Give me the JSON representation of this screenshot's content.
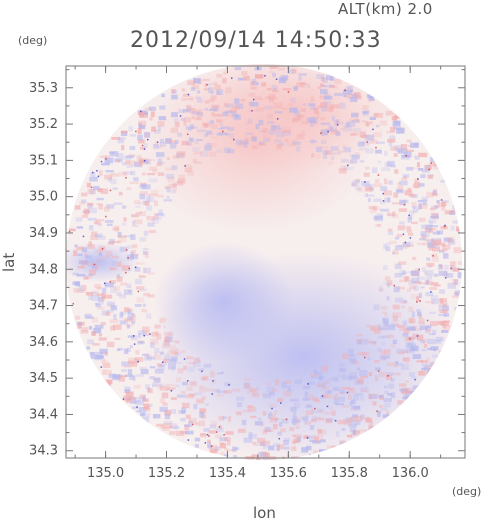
{
  "header": {
    "altitude": "ALT(km) 2.0",
    "timestamp": "2012/09/14 14:50:33",
    "y_unit": "(deg)",
    "x_unit": "(deg)"
  },
  "chart_data": {
    "type": "heatmap",
    "title": "2012/09/14 14:50:33",
    "xlabel": "lon",
    "ylabel": "lat",
    "xlim": [
      134.87,
      136.18
    ],
    "ylim": [
      34.28,
      35.36
    ],
    "x_ticks": [
      "135.0",
      "135.2",
      "135.4",
      "135.6",
      "135.8",
      "136.0"
    ],
    "y_ticks": [
      "34.3",
      "34.4",
      "34.5",
      "34.6",
      "34.7",
      "34.8",
      "34.9",
      "35.0",
      "35.1",
      "35.2",
      "35.3"
    ],
    "circle_center": [
      135.52,
      34.82
    ],
    "colors": {
      "positive": "#f4b8b8",
      "negative": "#b7b9f0",
      "frame": "#777777"
    }
  }
}
